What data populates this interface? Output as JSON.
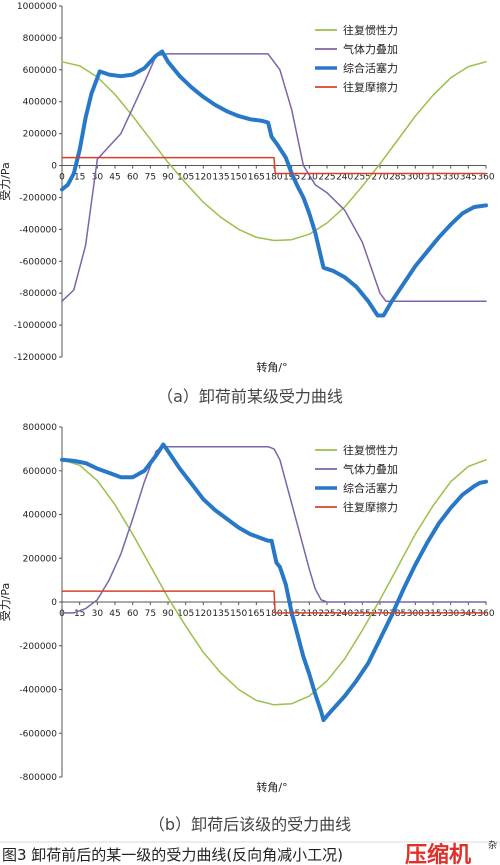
{
  "chart_data": [
    {
      "type": "line",
      "subcaption": "（a）卸荷前某级受力曲线",
      "xlabel": "转角/°",
      "ylabel": "受力/Pa",
      "xlim": [
        0,
        360
      ],
      "ylim": [
        -1200000,
        1000000
      ],
      "x_ticks": [
        0,
        15,
        30,
        45,
        60,
        75,
        90,
        105,
        120,
        135,
        150,
        165,
        180,
        195,
        210,
        225,
        240,
        255,
        270,
        285,
        300,
        315,
        330,
        345,
        360
      ],
      "y_ticks": [
        1000000,
        800000,
        600000,
        400000,
        200000,
        0,
        -200000,
        -400000,
        -600000,
        -800000,
        -1000000,
        -1200000
      ],
      "legend_position": "top-right",
      "series": [
        {
          "name": "往复惯性力",
          "color": "#9bc04a",
          "width": 1.5,
          "x": [
            0,
            15,
            30,
            45,
            60,
            75,
            90,
            105,
            120,
            135,
            150,
            165,
            180,
            195,
            210,
            225,
            240,
            255,
            270,
            285,
            300,
            315,
            330,
            345,
            360
          ],
          "y": [
            650000,
            625000,
            555000,
            445000,
            310000,
            165000,
            20000,
            -110000,
            -230000,
            -325000,
            -400000,
            -450000,
            -470000,
            -465000,
            -430000,
            -360000,
            -260000,
            -130000,
            10000,
            160000,
            310000,
            440000,
            550000,
            620000,
            650000
          ]
        },
        {
          "name": "气体力叠加",
          "color": "#7d64a8",
          "width": 1.5,
          "x": [
            0,
            10,
            20,
            30,
            40,
            50,
            60,
            70,
            80,
            90,
            100,
            120,
            140,
            160,
            175,
            185,
            195,
            205,
            215,
            225,
            240,
            255,
            270,
            275,
            285,
            300,
            330,
            360
          ],
          "y": [
            -850000,
            -780000,
            -500000,
            40000,
            120000,
            200000,
            360000,
            520000,
            690000,
            700000,
            700000,
            700000,
            700000,
            700000,
            700000,
            600000,
            350000,
            0,
            -120000,
            -170000,
            -280000,
            -480000,
            -800000,
            -850000,
            -850000,
            -850000,
            -850000,
            -850000
          ]
        },
        {
          "name": "综合活塞力",
          "color": "#2878c8",
          "width": 4,
          "x": [
            0,
            5,
            10,
            15,
            20,
            25,
            32,
            40,
            50,
            60,
            70,
            80,
            85,
            90,
            100,
            110,
            120,
            130,
            140,
            150,
            160,
            170,
            175,
            178,
            183,
            190,
            195,
            200,
            205,
            210,
            215,
            222,
            230,
            240,
            250,
            260,
            268,
            273,
            280,
            290,
            300,
            310,
            320,
            330,
            340,
            350,
            360
          ],
          "y": [
            -150000,
            -120000,
            -50000,
            100000,
            300000,
            450000,
            590000,
            570000,
            560000,
            570000,
            610000,
            690000,
            715000,
            650000,
            560000,
            490000,
            430000,
            380000,
            340000,
            310000,
            290000,
            280000,
            270000,
            180000,
            130000,
            50000,
            -50000,
            -130000,
            -200000,
            -300000,
            -420000,
            -640000,
            -660000,
            -700000,
            -760000,
            -850000,
            -940000,
            -940000,
            -850000,
            -740000,
            -630000,
            -540000,
            -450000,
            -370000,
            -300000,
            -260000,
            -250000
          ]
        },
        {
          "name": "往复摩擦力",
          "color": "#d9402a",
          "width": 1.5,
          "x": [
            0,
            180,
            181,
            360
          ],
          "y": [
            50000,
            50000,
            -50000,
            -50000
          ]
        }
      ]
    },
    {
      "type": "line",
      "subcaption": "（b）卸荷后该级的受力曲线",
      "xlabel": "转角/°",
      "ylabel": "受力/Pa",
      "xlim": [
        0,
        360
      ],
      "ylim": [
        -800000,
        800000
      ],
      "x_ticks": [
        0,
        15,
        30,
        45,
        60,
        75,
        90,
        105,
        120,
        135,
        150,
        165,
        180,
        195,
        210,
        225,
        240,
        255,
        270,
        285,
        300,
        315,
        330,
        345,
        360
      ],
      "y_ticks": [
        800000,
        600000,
        400000,
        200000,
        0,
        -200000,
        -400000,
        -600000,
        -800000
      ],
      "legend_position": "top-right",
      "series": [
        {
          "name": "往复惯性力",
          "color": "#9bc04a",
          "width": 1.5,
          "x": [
            0,
            15,
            30,
            45,
            60,
            75,
            90,
            105,
            120,
            135,
            150,
            165,
            180,
            195,
            210,
            225,
            240,
            255,
            270,
            285,
            300,
            315,
            330,
            345,
            360
          ],
          "y": [
            650000,
            625000,
            555000,
            445000,
            310000,
            165000,
            20000,
            -110000,
            -230000,
            -325000,
            -400000,
            -450000,
            -470000,
            -465000,
            -430000,
            -360000,
            -260000,
            -130000,
            10000,
            160000,
            310000,
            440000,
            550000,
            620000,
            650000
          ]
        },
        {
          "name": "气体力叠加",
          "color": "#7d64a8",
          "width": 1.5,
          "x": [
            0,
            10,
            20,
            30,
            40,
            50,
            60,
            70,
            80,
            85,
            90,
            120,
            150,
            175,
            180,
            185,
            190,
            200,
            210,
            215,
            220,
            225,
            360
          ],
          "y": [
            -50000,
            -50000,
            -30000,
            10000,
            100000,
            220000,
            380000,
            550000,
            690000,
            710000,
            710000,
            710000,
            710000,
            710000,
            700000,
            650000,
            550000,
            350000,
            150000,
            60000,
            10000,
            0,
            0
          ]
        },
        {
          "name": "综合活塞力",
          "color": "#2878c8",
          "width": 4,
          "x": [
            0,
            10,
            20,
            30,
            40,
            50,
            60,
            70,
            80,
            86,
            90,
            100,
            110,
            120,
            130,
            140,
            150,
            160,
            170,
            175,
            178,
            182,
            185,
            190,
            195,
            200,
            205,
            210,
            215,
            220,
            222,
            225,
            230,
            240,
            250,
            260,
            270,
            280,
            290,
            300,
            310,
            320,
            330,
            340,
            350,
            355,
            360
          ],
          "y": [
            650000,
            645000,
            635000,
            610000,
            590000,
            570000,
            570000,
            600000,
            670000,
            720000,
            690000,
            610000,
            540000,
            470000,
            420000,
            380000,
            340000,
            310000,
            290000,
            280000,
            280000,
            180000,
            160000,
            80000,
            -50000,
            -150000,
            -250000,
            -330000,
            -420000,
            -500000,
            -540000,
            -520000,
            -490000,
            -430000,
            -360000,
            -280000,
            -170000,
            -60000,
            60000,
            170000,
            270000,
            360000,
            430000,
            490000,
            530000,
            545000,
            550000
          ]
        },
        {
          "name": "往复摩擦力",
          "color": "#d9402a",
          "width": 1.5,
          "x": [
            0,
            180,
            181,
            360
          ],
          "y": [
            50000,
            50000,
            -50000,
            -50000
          ]
        }
      ]
    }
  ],
  "figure_caption": "图3 卸荷前后的某一级的受力曲线(反向角减小工况)",
  "watermark": "压缩机",
  "watermark_small": "杂"
}
